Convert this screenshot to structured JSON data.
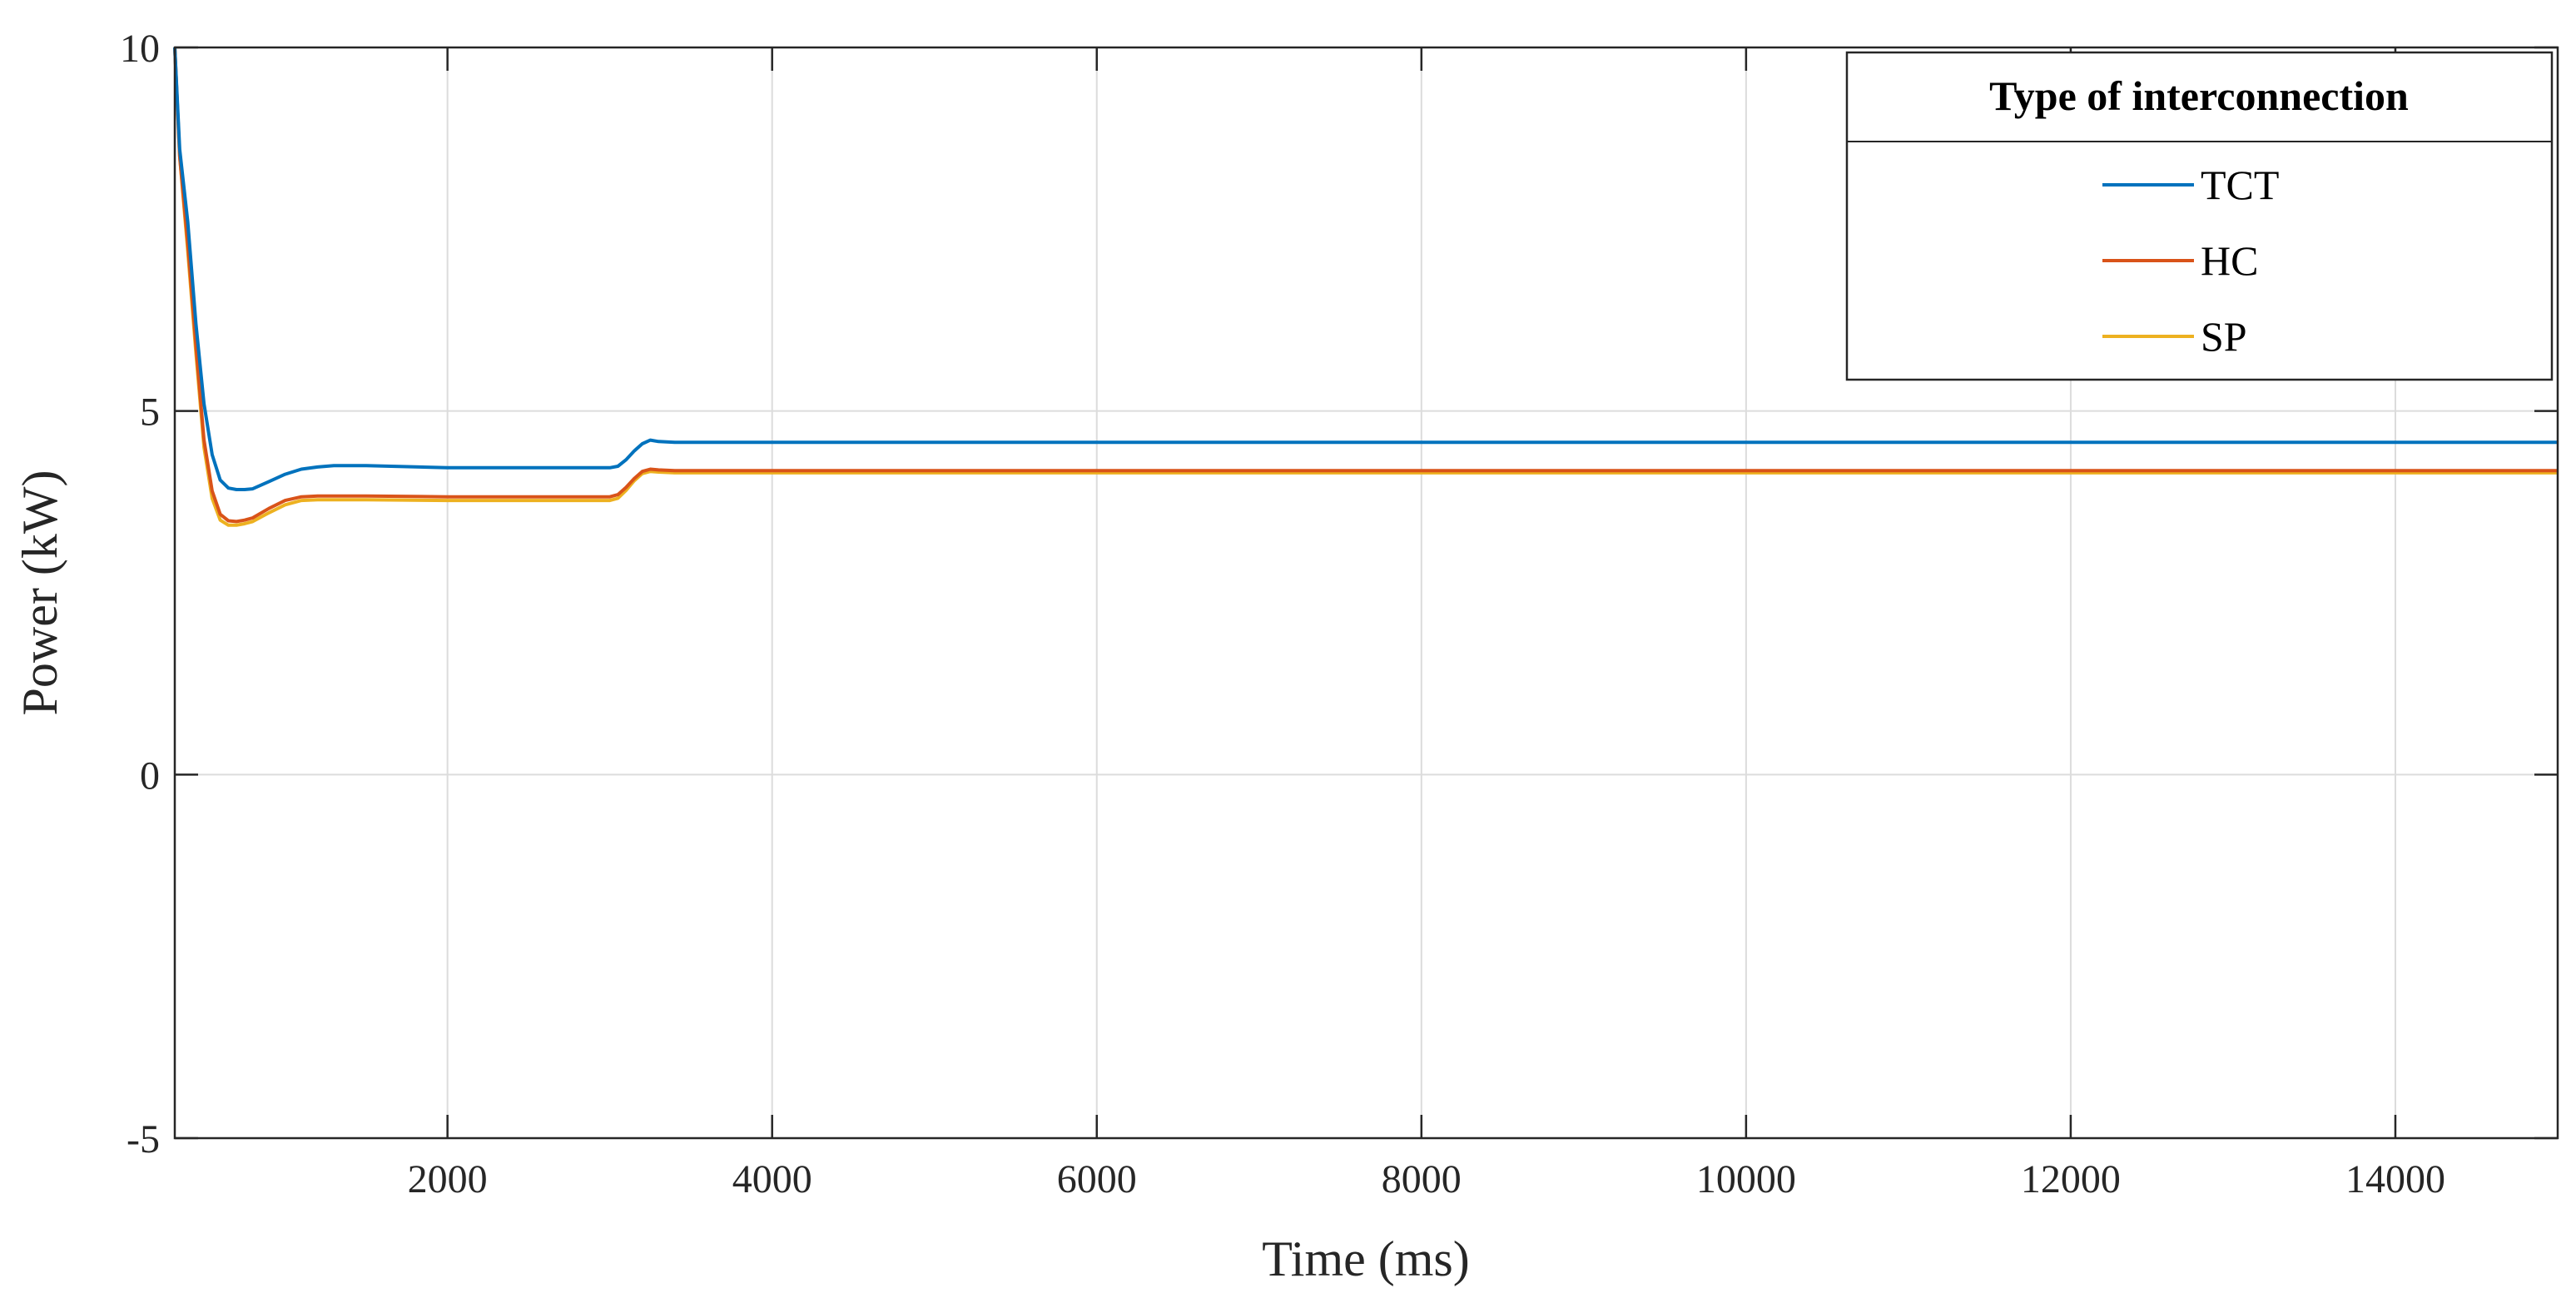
{
  "chart_data": {
    "type": "line",
    "title": "",
    "xlabel": "Time (ms)",
    "ylabel": "Power (kW)",
    "xlim": [
      320,
      15000
    ],
    "ylim": [
      -5,
      10
    ],
    "xticks": [
      2000,
      4000,
      6000,
      8000,
      10000,
      12000,
      14000
    ],
    "yticks": [
      -5,
      0,
      5,
      10
    ],
    "grid": true,
    "legend": {
      "title": "Type of interconnection",
      "placement": "top-right"
    },
    "series": [
      {
        "name": "TCT",
        "color": "#0072BD",
        "x": [
          320,
          350,
          400,
          450,
          500,
          550,
          600,
          650,
          700,
          750,
          800,
          900,
          1000,
          1100,
          1200,
          1300,
          1500,
          2000,
          2500,
          3000,
          3050,
          3100,
          3150,
          3200,
          3250,
          3300,
          3400,
          3600,
          4000,
          15000
        ],
        "y": [
          10,
          8.6,
          7.6,
          6.2,
          5.1,
          4.4,
          4.05,
          3.94,
          3.92,
          3.92,
          3.93,
          4.03,
          4.13,
          4.2,
          4.23,
          4.25,
          4.25,
          4.22,
          4.22,
          4.22,
          4.24,
          4.33,
          4.45,
          4.55,
          4.6,
          4.58,
          4.57,
          4.57,
          4.57,
          4.57
        ]
      },
      {
        "name": "HC",
        "color": "#D95319",
        "x": [
          320,
          350,
          400,
          450,
          500,
          550,
          600,
          650,
          700,
          750,
          800,
          900,
          1000,
          1100,
          1200,
          1300,
          1500,
          2000,
          2500,
          3000,
          3050,
          3100,
          3150,
          3200,
          3250,
          3300,
          3400,
          3600,
          4000,
          15000
        ],
        "y": [
          10,
          8.5,
          7.3,
          5.9,
          4.6,
          3.9,
          3.58,
          3.49,
          3.48,
          3.5,
          3.53,
          3.66,
          3.77,
          3.82,
          3.83,
          3.83,
          3.83,
          3.82,
          3.82,
          3.82,
          3.85,
          3.95,
          4.07,
          4.17,
          4.2,
          4.19,
          4.18,
          4.18,
          4.18,
          4.18
        ]
      },
      {
        "name": "SP",
        "color": "#EDB120",
        "x": [
          320,
          350,
          400,
          450,
          500,
          550,
          600,
          650,
          700,
          750,
          800,
          900,
          1000,
          1100,
          1200,
          1300,
          1500,
          2000,
          2500,
          3000,
          3050,
          3100,
          3150,
          3200,
          3250,
          3300,
          3400,
          3600,
          4000,
          15000
        ],
        "y": [
          10,
          8.5,
          7.2,
          5.8,
          4.5,
          3.8,
          3.5,
          3.43,
          3.43,
          3.45,
          3.48,
          3.6,
          3.71,
          3.77,
          3.78,
          3.78,
          3.78,
          3.77,
          3.77,
          3.77,
          3.8,
          3.91,
          4.04,
          4.14,
          4.17,
          4.16,
          4.15,
          4.15,
          4.15,
          4.15
        ]
      }
    ]
  }
}
